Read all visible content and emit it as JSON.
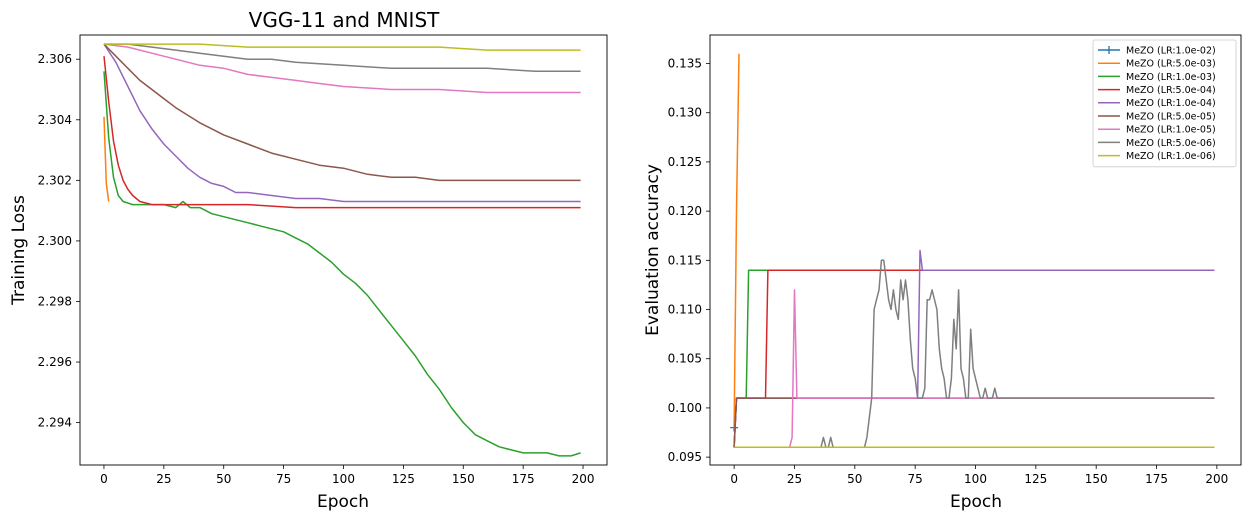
{
  "chart_data": [
    {
      "type": "line",
      "title": "VGG-11 and MNIST",
      "xlabel": "Epoch",
      "ylabel": "Training Loss",
      "xlim": [
        -10,
        210
      ],
      "ylim": [
        2.2926,
        2.3068
      ],
      "xticks": [
        0,
        25,
        50,
        75,
        100,
        125,
        150,
        175,
        200
      ],
      "yticks": [
        2.294,
        2.296,
        2.298,
        2.3,
        2.302,
        2.304,
        2.306
      ],
      "ytick_labels": [
        "2.294",
        "2.296",
        "2.298",
        "2.300",
        "2.302",
        "2.304",
        "2.306"
      ],
      "legend": "none",
      "series": [
        {
          "color": "#ff7f0e",
          "x": [
            0,
            1,
            2
          ],
          "y": [
            2.3041,
            2.3019,
            2.3013
          ]
        },
        {
          "color": "#2ca02c",
          "x": [
            0,
            2,
            4,
            6,
            8,
            12,
            16,
            20,
            25,
            30,
            33,
            36,
            40,
            45,
            50,
            55,
            60,
            65,
            70,
            75,
            80,
            85,
            90,
            95,
            100,
            105,
            110,
            115,
            120,
            125,
            130,
            135,
            140,
            145,
            150,
            155,
            160,
            165,
            170,
            175,
            180,
            185,
            190,
            195,
            199
          ],
          "y": [
            2.3056,
            2.3034,
            2.3021,
            2.3015,
            2.3013,
            2.3012,
            2.3012,
            2.3012,
            2.3012,
            2.3011,
            2.3013,
            2.3011,
            2.3011,
            2.3009,
            2.3008,
            2.3007,
            2.3006,
            2.3005,
            2.3004,
            2.3003,
            2.3001,
            2.2999,
            2.2996,
            2.2993,
            2.2989,
            2.2986,
            2.2982,
            2.2977,
            2.2972,
            2.2967,
            2.2962,
            2.2956,
            2.2951,
            2.2945,
            2.294,
            2.2936,
            2.2934,
            2.2932,
            2.2931,
            2.293,
            2.293,
            2.293,
            2.2929,
            2.2929,
            2.293
          ]
        },
        {
          "color": "#d62728",
          "x": [
            0,
            2,
            4,
            6,
            8,
            10,
            12,
            15,
            20,
            25,
            30,
            40,
            50,
            60,
            80,
            100,
            120,
            140,
            160,
            180,
            199
          ],
          "y": [
            2.3061,
            2.3046,
            2.3033,
            2.3025,
            2.302,
            2.3017,
            2.3015,
            2.3013,
            2.3012,
            2.3012,
            2.3012,
            2.3012,
            2.3012,
            2.3012,
            2.3011,
            2.3011,
            2.3011,
            2.3011,
            2.3011,
            2.3011,
            2.3011
          ]
        },
        {
          "color": "#9467bd",
          "x": [
            0,
            5,
            10,
            15,
            20,
            25,
            30,
            35,
            40,
            45,
            50,
            55,
            60,
            70,
            80,
            90,
            100,
            120,
            140,
            160,
            180,
            199
          ],
          "y": [
            2.3065,
            2.3059,
            2.3051,
            2.3043,
            2.3037,
            2.3032,
            2.3028,
            2.3024,
            2.3021,
            2.3019,
            2.3018,
            2.3016,
            2.3016,
            2.3015,
            2.3014,
            2.3014,
            2.3013,
            2.3013,
            2.3013,
            2.3013,
            2.3013,
            2.3013
          ]
        },
        {
          "color": "#8c564b",
          "x": [
            0,
            5,
            10,
            15,
            20,
            25,
            30,
            40,
            50,
            60,
            70,
            80,
            90,
            100,
            110,
            120,
            130,
            140,
            150,
            160,
            170,
            180,
            190,
            199
          ],
          "y": [
            2.3065,
            2.3061,
            2.3057,
            2.3053,
            2.305,
            2.3047,
            2.3044,
            2.3039,
            2.3035,
            2.3032,
            2.3029,
            2.3027,
            2.3025,
            2.3024,
            2.3022,
            2.3021,
            2.3021,
            2.302,
            2.302,
            2.302,
            2.302,
            2.302,
            2.302,
            2.302
          ]
        },
        {
          "color": "#e377c2",
          "x": [
            0,
            10,
            20,
            30,
            40,
            50,
            60,
            70,
            80,
            90,
            100,
            120,
            140,
            160,
            180,
            199
          ],
          "y": [
            2.3065,
            2.3064,
            2.3062,
            2.306,
            2.3058,
            2.3057,
            2.3055,
            2.3054,
            2.3053,
            2.3052,
            2.3051,
            2.305,
            2.305,
            2.3049,
            2.3049,
            2.3049
          ]
        },
        {
          "color": "#7f7f7f",
          "x": [
            0,
            10,
            20,
            30,
            40,
            50,
            60,
            70,
            80,
            100,
            120,
            140,
            160,
            180,
            199
          ],
          "y": [
            2.3065,
            2.3065,
            2.3064,
            2.3063,
            2.3062,
            2.3061,
            2.306,
            2.306,
            2.3059,
            2.3058,
            2.3057,
            2.3057,
            2.3057,
            2.3056,
            2.3056
          ]
        },
        {
          "color": "#bcbd22",
          "x": [
            0,
            10,
            20,
            40,
            60,
            80,
            100,
            120,
            140,
            160,
            180,
            199
          ],
          "y": [
            2.3065,
            2.3065,
            2.3065,
            2.3065,
            2.3064,
            2.3064,
            2.3064,
            2.3064,
            2.3064,
            2.3063,
            2.3063,
            2.3063
          ]
        }
      ]
    },
    {
      "type": "line",
      "title": "",
      "xlabel": "Epoch",
      "ylabel": "Evaluation accuracy",
      "xlim": [
        -10,
        210
      ],
      "ylim": [
        0.0942,
        0.1379
      ],
      "xticks": [
        0,
        25,
        50,
        75,
        100,
        125,
        150,
        175,
        200
      ],
      "yticks": [
        0.095,
        0.1,
        0.105,
        0.11,
        0.115,
        0.12,
        0.125,
        0.13,
        0.135
      ],
      "ytick_labels": [
        "0.095",
        "0.100",
        "0.105",
        "0.110",
        "0.115",
        "0.120",
        "0.125",
        "0.130",
        "0.135"
      ],
      "legend": "top-right",
      "series": [
        {
          "name": "MeZO (LR:1.0e-02)",
          "color": "#1f77b4",
          "marker": "+",
          "x": [
            0
          ],
          "y": [
            0.098
          ]
        },
        {
          "name": "MeZO (LR:5.0e-03)",
          "color": "#ff7f0e",
          "x": [
            0,
            1,
            2
          ],
          "y": [
            0.098,
            0.12,
            0.136
          ]
        },
        {
          "name": "MeZO (LR:1.0e-03)",
          "color": "#2ca02c",
          "x": [
            0,
            1,
            5,
            6,
            199
          ],
          "y": [
            0.096,
            0.101,
            0.101,
            0.114,
            0.114
          ]
        },
        {
          "name": "MeZO (LR:5.0e-04)",
          "color": "#d62728",
          "x": [
            0,
            1,
            13,
            14,
            199
          ],
          "y": [
            0.096,
            0.101,
            0.101,
            0.114,
            0.114
          ]
        },
        {
          "name": "MeZO (LR:1.0e-04)",
          "color": "#9467bd",
          "x": [
            0,
            1,
            76,
            77,
            78,
            199
          ],
          "y": [
            0.096,
            0.101,
            0.101,
            0.116,
            0.114,
            0.114
          ]
        },
        {
          "name": "MeZO (LR:5.0e-05)",
          "color": "#8c564b",
          "x": [
            0,
            1,
            199
          ],
          "y": [
            0.096,
            0.101,
            0.101
          ]
        },
        {
          "name": "MeZO (LR:1.0e-05)",
          "color": "#e377c2",
          "x": [
            0,
            23,
            24,
            25,
            26,
            27,
            199
          ],
          "y": [
            0.096,
            0.096,
            0.097,
            0.112,
            0.101,
            0.101,
            0.101
          ]
        },
        {
          "name": "MeZO (LR:5.0e-06)",
          "color": "#7f7f7f",
          "x": [
            0,
            36,
            37,
            38,
            39,
            40,
            41,
            54,
            55,
            57,
            58,
            59,
            60,
            61,
            62,
            63,
            64,
            65,
            66,
            67,
            68,
            69,
            70,
            71,
            72,
            73,
            74,
            75,
            76,
            77,
            78,
            79,
            80,
            81,
            82,
            83,
            84,
            85,
            86,
            87,
            88,
            89,
            90,
            91,
            92,
            93,
            94,
            95,
            96,
            97,
            98,
            99,
            100,
            101,
            102,
            103,
            104,
            105,
            106,
            107,
            108,
            109,
            199
          ],
          "y": [
            0.096,
            0.096,
            0.097,
            0.096,
            0.096,
            0.097,
            0.096,
            0.096,
            0.097,
            0.101,
            0.11,
            0.111,
            0.112,
            0.115,
            0.115,
            0.113,
            0.111,
            0.11,
            0.112,
            0.11,
            0.109,
            0.113,
            0.111,
            0.113,
            0.111,
            0.107,
            0.104,
            0.103,
            0.101,
            0.101,
            0.101,
            0.102,
            0.111,
            0.111,
            0.112,
            0.111,
            0.11,
            0.106,
            0.104,
            0.103,
            0.101,
            0.101,
            0.103,
            0.109,
            0.106,
            0.112,
            0.104,
            0.103,
            0.101,
            0.101,
            0.108,
            0.104,
            0.103,
            0.102,
            0.101,
            0.101,
            0.102,
            0.101,
            0.101,
            0.101,
            0.102,
            0.101,
            0.101
          ]
        },
        {
          "name": "MeZO (LR:1.0e-06)",
          "color": "#bcbd22",
          "x": [
            0,
            199
          ],
          "y": [
            0.096,
            0.096
          ]
        }
      ]
    }
  ]
}
